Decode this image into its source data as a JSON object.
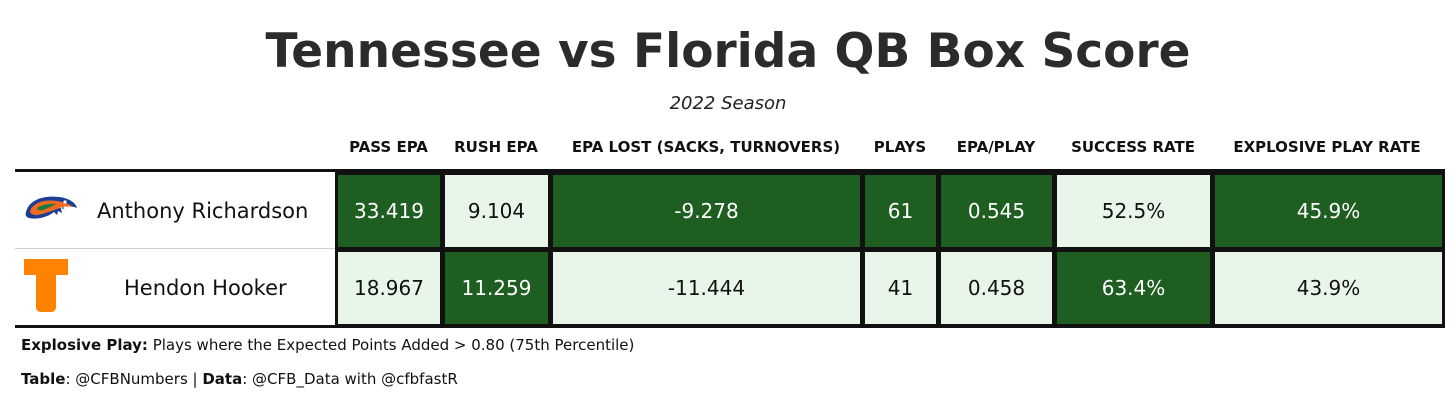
{
  "title": "Tennessee vs Florida QB Box Score",
  "subtitle": "2022 Season",
  "colors": {
    "dark_cell": "#1e5e20",
    "light_cell": "#e8f5e9",
    "florida_orange": "#f26a21",
    "florida_blue": "#1c3f94",
    "tennessee_orange": "#ff8200"
  },
  "chart_data": {
    "type": "table",
    "columns": [
      "PASS EPA",
      "RUSH EPA",
      "EPA LOST (SACKS, TURNOVERS)",
      "PLAYS",
      "EPA/PLAY",
      "SUCCESS RATE",
      "EXPLOSIVE PLAY RATE"
    ],
    "rows": [
      {
        "player": "Anthony Richardson",
        "logo_icon": "florida-gators-logo-icon",
        "values": [
          "33.419",
          "9.104",
          "-9.278",
          "61",
          "0.545",
          "52.5%",
          "45.9%"
        ],
        "shading": [
          "dark",
          "light",
          "dark",
          "dark",
          "dark",
          "light",
          "dark"
        ]
      },
      {
        "player": "Hendon Hooker",
        "logo_icon": "tennessee-power-t-logo-icon",
        "values": [
          "18.967",
          "11.259",
          "-11.444",
          "41",
          "0.458",
          "63.4%",
          "43.9%"
        ],
        "shading": [
          "light",
          "dark",
          "light",
          "light",
          "light",
          "dark",
          "light"
        ]
      }
    ]
  },
  "footnotes": {
    "explosive_label": "Explosive Play:",
    "explosive_text": " Plays where the Expected Points Added > 0.80 (75th Percentile)",
    "table_label": "Table",
    "table_text": ": @CFBNumbers | ",
    "data_label": "Data",
    "data_text": ": @CFB_Data with @cfbfastR"
  }
}
